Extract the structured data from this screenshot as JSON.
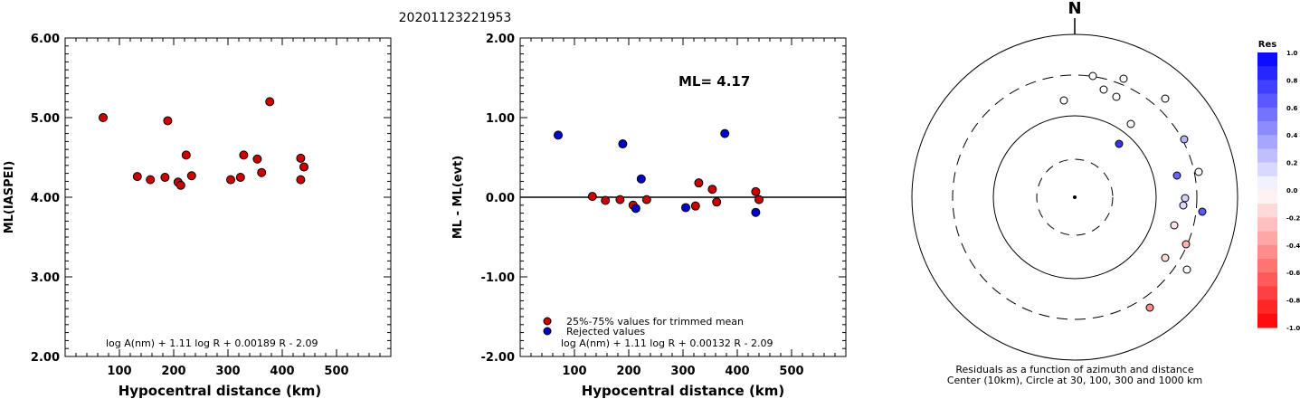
{
  "page_title": "20201123221953",
  "chart_data": [
    {
      "type": "scatter",
      "xlabel": "Hypocentral distance (km)",
      "ylabel": "ML(IASPEI)",
      "xlim": [
        0,
        600
      ],
      "ylim": [
        2.0,
        6.0
      ],
      "x_ticks": [
        "100",
        "200",
        "300",
        "400",
        "500"
      ],
      "y_ticks": [
        "2.00",
        "3.00",
        "4.00",
        "5.00",
        "6.00"
      ],
      "formula": "log A(nm) + 1.11 log R + 0.00189 R - 2.09",
      "points": [
        {
          "x": 70,
          "y": 5.0
        },
        {
          "x": 133,
          "y": 4.26
        },
        {
          "x": 157,
          "y": 4.22
        },
        {
          "x": 184,
          "y": 4.25
        },
        {
          "x": 189,
          "y": 4.96
        },
        {
          "x": 208,
          "y": 4.19
        },
        {
          "x": 213,
          "y": 4.15
        },
        {
          "x": 223,
          "y": 4.53
        },
        {
          "x": 233,
          "y": 4.27
        },
        {
          "x": 305,
          "y": 4.22
        },
        {
          "x": 323,
          "y": 4.25
        },
        {
          "x": 329,
          "y": 4.53
        },
        {
          "x": 354,
          "y": 4.48
        },
        {
          "x": 362,
          "y": 4.31
        },
        {
          "x": 377,
          "y": 5.2
        },
        {
          "x": 434,
          "y": 4.49
        },
        {
          "x": 434,
          "y": 4.22
        },
        {
          "x": 440,
          "y": 4.38
        }
      ],
      "point_color": "#cc0000"
    },
    {
      "type": "scatter",
      "xlabel": "Hypocentral distance (km)",
      "ylabel": "ML - ML(evt)",
      "xlim": [
        0,
        600
      ],
      "ylim": [
        -2.0,
        2.0
      ],
      "x_ticks": [
        "100",
        "200",
        "300",
        "400",
        "500"
      ],
      "y_ticks": [
        "-2.00",
        "-1.00",
        "0.00",
        "1.00",
        "2.00"
      ],
      "annotation": "ML= 4.17",
      "formula": "log A(nm) + 1.11 log R + 0.00132 R - 2.09",
      "legend": [
        {
          "label": "25%-75% values for trimmed mean",
          "color": "#cc0000"
        },
        {
          "label": "Rejected values",
          "color": "#0000cc"
        }
      ],
      "points": [
        {
          "x": 70,
          "y": 0.78,
          "group": "rejected"
        },
        {
          "x": 133,
          "y": 0.01,
          "group": "trimmed"
        },
        {
          "x": 157,
          "y": -0.04,
          "group": "trimmed"
        },
        {
          "x": 184,
          "y": -0.03,
          "group": "trimmed"
        },
        {
          "x": 189,
          "y": 0.67,
          "group": "rejected"
        },
        {
          "x": 208,
          "y": -0.1,
          "group": "trimmed"
        },
        {
          "x": 213,
          "y": -0.14,
          "group": "rejected"
        },
        {
          "x": 223,
          "y": 0.23,
          "group": "rejected"
        },
        {
          "x": 233,
          "y": -0.03,
          "group": "trimmed"
        },
        {
          "x": 305,
          "y": -0.13,
          "group": "rejected"
        },
        {
          "x": 323,
          "y": -0.11,
          "group": "trimmed"
        },
        {
          "x": 329,
          "y": 0.18,
          "group": "trimmed"
        },
        {
          "x": 354,
          "y": 0.1,
          "group": "trimmed"
        },
        {
          "x": 362,
          "y": -0.06,
          "group": "trimmed"
        },
        {
          "x": 377,
          "y": 0.8,
          "group": "rejected"
        },
        {
          "x": 434,
          "y": 0.07,
          "group": "trimmed"
        },
        {
          "x": 434,
          "y": -0.19,
          "group": "rejected"
        },
        {
          "x": 440,
          "y": -0.03,
          "group": "trimmed"
        }
      ]
    },
    {
      "type": "polar_scatter",
      "north_label": "N",
      "caption_line1": "Residuals as a function of azimuth and distance",
      "caption_line2": "Center (10km), Circle at 30, 100, 300 and 1000 km",
      "circles_km": [
        30,
        100,
        300,
        1000
      ],
      "colorbar": {
        "title": "Res",
        "ticks": [
          "1.0",
          "0.8",
          "0.6",
          "0.4",
          "0.2",
          "0.0",
          "-0.2",
          "-0.4",
          "-0.6",
          "-0.8",
          "-1.0"
        ],
        "range": [
          -1.0,
          1.0
        ]
      },
      "points": [
        {
          "dx": 20,
          "dy": -134,
          "res": 0.0
        },
        {
          "dx": 32,
          "dy": -119,
          "res": 0.0
        },
        {
          "dx": 54,
          "dy": -131,
          "res": 0.0
        },
        {
          "dx": 46,
          "dy": -111,
          "res": 0.0
        },
        {
          "dx": -12,
          "dy": -107,
          "res": 0.02
        },
        {
          "dx": 100,
          "dy": -109,
          "res": 0.03
        },
        {
          "dx": 62,
          "dy": -81,
          "res": 0.02
        },
        {
          "dx": 121,
          "dy": -64,
          "res": 0.3
        },
        {
          "dx": 49,
          "dy": -59,
          "res": 0.8
        },
        {
          "dx": 137,
          "dy": -28,
          "res": 0.03
        },
        {
          "dx": 113,
          "dy": -24,
          "res": 0.6
        },
        {
          "dx": 122,
          "dy": 1,
          "res": 0.18
        },
        {
          "dx": 120,
          "dy": 9,
          "res": 0.15
        },
        {
          "dx": 141,
          "dy": 16,
          "res": 0.65
        },
        {
          "dx": 110,
          "dy": 31,
          "res": -0.1
        },
        {
          "dx": 123,
          "dy": 52,
          "res": -0.3
        },
        {
          "dx": 100,
          "dy": 67,
          "res": -0.15
        },
        {
          "dx": 124,
          "dy": 80,
          "res": 0.0
        },
        {
          "dx": 83,
          "dy": 122,
          "res": -0.45
        }
      ]
    }
  ]
}
